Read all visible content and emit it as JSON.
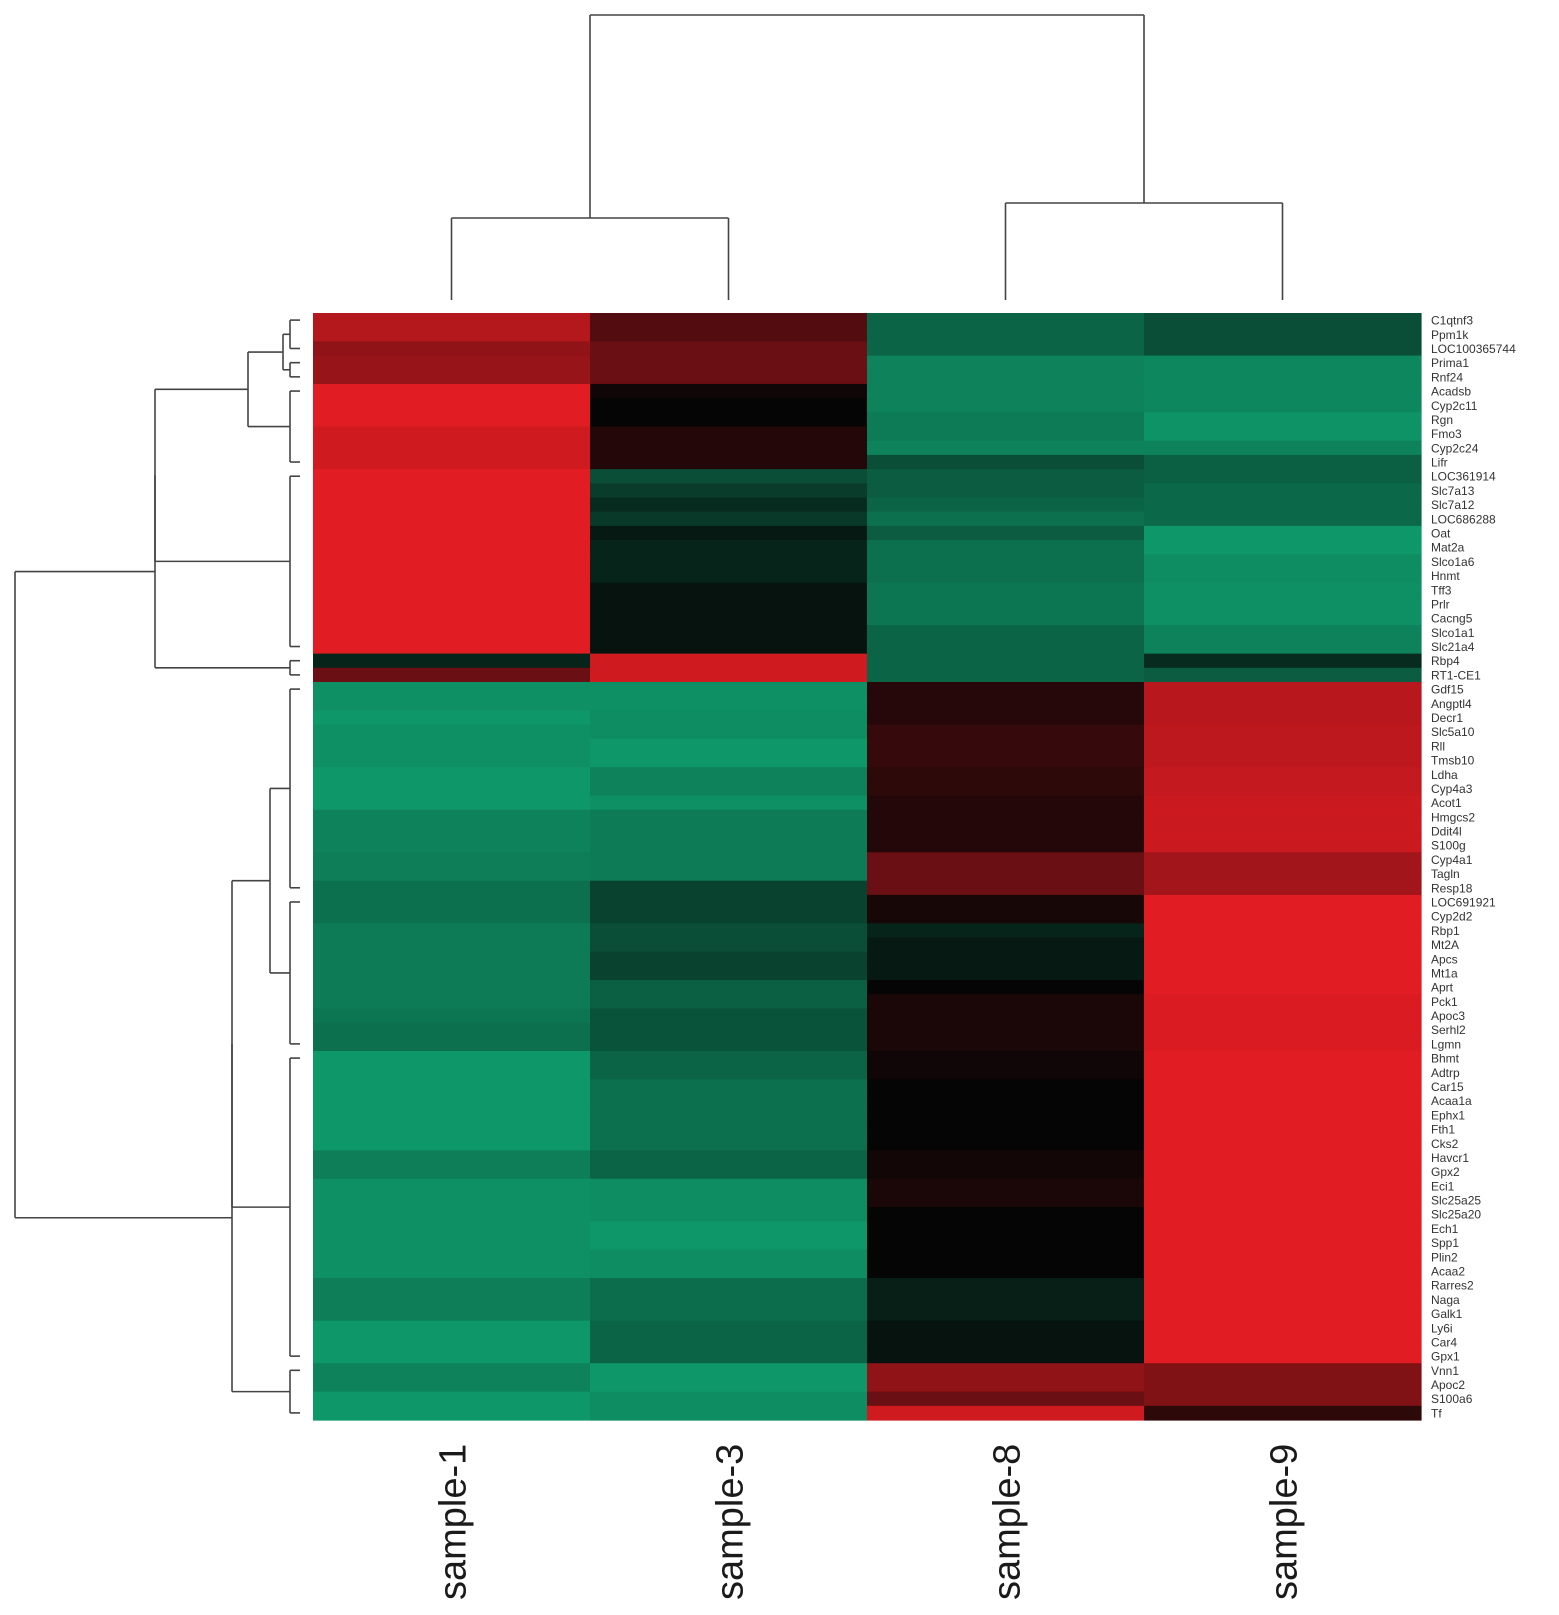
{
  "chart_data": {
    "type": "heatmap",
    "samples": [
      "sample-1",
      "sample-3",
      "sample-8",
      "sample-9"
    ],
    "genes": [
      "C1qtnf3",
      "Ppm1k",
      "LOC100365744",
      "Prima1",
      "Rnf24",
      "Acadsb",
      "Cyp2c11",
      "Rgn",
      "Fmo3",
      "Cyp2c24",
      "Lifr",
      "LOC361914",
      "Slc7a13",
      "Slc7a12",
      "LOC686288",
      "Oat",
      "Mat2a",
      "Slco1a6",
      "Hnmt",
      "Tff3",
      "Prlr",
      "Cacng5",
      "Slco1a1",
      "Slc21a4",
      "Rbp4",
      "RT1-CE1",
      "Gdf15",
      "Angptl4",
      "Decr1",
      "Slc5a10",
      "Rll",
      "Tmsb10",
      "Ldha",
      "Cyp4a3",
      "Acot1",
      "Hmgcs2",
      "Ddit4l",
      "S100g",
      "Cyp4a1",
      "Tagln",
      "Resp18",
      "LOC691921",
      "Cyp2d2",
      "Rbp1",
      "Mt2A",
      "Apcs",
      "Mt1a",
      "Aprt",
      "Pck1",
      "Apoc3",
      "Serhl2",
      "Lgmn",
      "Bhmt",
      "Adtrp",
      "Car15",
      "Acaa1a",
      "Ephx1",
      "Fth1",
      "Cks2",
      "Havcr1",
      "Gpx2",
      "Eci1",
      "Slc25a25",
      "Slc25a20",
      "Ech1",
      "Spp1",
      "Plin2",
      "Acaa2",
      "Rarres2",
      "Naga",
      "Galk1",
      "Ly6i",
      "Car4",
      "Gpx1",
      "Vnn1",
      "Apoc2",
      "S100a6",
      "Tf"
    ],
    "values": [
      [
        0.78,
        0.35,
        -0.55,
        -0.42
      ],
      [
        0.78,
        0.35,
        -0.55,
        -0.42
      ],
      [
        0.62,
        0.45,
        -0.55,
        -0.42
      ],
      [
        0.65,
        0.45,
        -0.72,
        -0.75
      ],
      [
        0.65,
        0.45,
        -0.72,
        -0.75
      ],
      [
        0.98,
        0.05,
        -0.72,
        -0.75
      ],
      [
        0.98,
        0.0,
        -0.72,
        -0.75
      ],
      [
        0.98,
        0.0,
        -0.68,
        -0.82
      ],
      [
        0.9,
        0.14,
        -0.68,
        -0.82
      ],
      [
        0.9,
        0.14,
        -0.72,
        -0.72
      ],
      [
        0.9,
        0.14,
        -0.42,
        -0.52
      ],
      [
        0.98,
        -0.42,
        -0.5,
        -0.52
      ],
      [
        0.98,
        -0.32,
        -0.5,
        -0.58
      ],
      [
        0.98,
        -0.22,
        -0.55,
        -0.58
      ],
      [
        0.98,
        -0.3,
        -0.62,
        -0.58
      ],
      [
        0.98,
        -0.12,
        -0.5,
        -0.85
      ],
      [
        0.98,
        -0.18,
        -0.62,
        -0.85
      ],
      [
        0.98,
        -0.18,
        -0.62,
        -0.78
      ],
      [
        0.98,
        -0.18,
        -0.62,
        -0.78
      ],
      [
        0.98,
        -0.08,
        -0.65,
        -0.8
      ],
      [
        0.98,
        -0.08,
        -0.65,
        -0.8
      ],
      [
        0.98,
        -0.08,
        -0.65,
        -0.8
      ],
      [
        0.98,
        -0.08,
        -0.55,
        -0.72
      ],
      [
        0.98,
        -0.08,
        -0.55,
        -0.72
      ],
      [
        -0.18,
        0.9,
        -0.55,
        -0.22
      ],
      [
        0.45,
        0.9,
        -0.55,
        -0.5
      ],
      [
        -0.8,
        -0.8,
        0.15,
        0.8
      ],
      [
        -0.8,
        -0.8,
        0.15,
        0.8
      ],
      [
        -0.85,
        -0.78,
        0.15,
        0.8
      ],
      [
        -0.8,
        -0.78,
        0.22,
        0.82
      ],
      [
        -0.8,
        -0.85,
        0.22,
        0.82
      ],
      [
        -0.8,
        -0.85,
        0.22,
        0.82
      ],
      [
        -0.85,
        -0.72,
        0.18,
        0.85
      ],
      [
        -0.85,
        -0.72,
        0.18,
        0.85
      ],
      [
        -0.85,
        -0.8,
        0.14,
        0.88
      ],
      [
        -0.72,
        -0.68,
        0.14,
        0.88
      ],
      [
        -0.72,
        -0.68,
        0.14,
        0.88
      ],
      [
        -0.72,
        -0.68,
        0.14,
        0.88
      ],
      [
        -0.7,
        -0.68,
        0.45,
        0.7
      ],
      [
        -0.7,
        -0.68,
        0.45,
        0.7
      ],
      [
        -0.62,
        -0.35,
        0.45,
        0.7
      ],
      [
        -0.62,
        -0.35,
        0.08,
        0.98
      ],
      [
        -0.62,
        -0.35,
        0.08,
        0.98
      ],
      [
        -0.68,
        -0.42,
        -0.18,
        0.98
      ],
      [
        -0.68,
        -0.42,
        -0.12,
        0.98
      ],
      [
        -0.68,
        -0.35,
        -0.12,
        0.98
      ],
      [
        -0.68,
        -0.35,
        -0.12,
        0.98
      ],
      [
        -0.68,
        -0.52,
        0.0,
        0.98
      ],
      [
        -0.68,
        -0.52,
        0.1,
        0.95
      ],
      [
        -0.65,
        -0.45,
        0.1,
        0.95
      ],
      [
        -0.62,
        -0.45,
        0.1,
        0.95
      ],
      [
        -0.62,
        -0.45,
        0.1,
        0.95
      ],
      [
        -0.85,
        -0.55,
        0.05,
        0.98
      ],
      [
        -0.85,
        -0.55,
        0.05,
        0.98
      ],
      [
        -0.85,
        -0.62,
        0.0,
        0.98
      ],
      [
        -0.85,
        -0.62,
        0.0,
        0.98
      ],
      [
        -0.85,
        -0.62,
        0.0,
        0.98
      ],
      [
        -0.85,
        -0.62,
        0.0,
        0.98
      ],
      [
        -0.85,
        -0.62,
        0.0,
        0.98
      ],
      [
        -0.7,
        -0.55,
        0.06,
        0.98
      ],
      [
        -0.7,
        -0.55,
        0.06,
        0.98
      ],
      [
        -0.8,
        -0.78,
        0.1,
        0.98
      ],
      [
        -0.8,
        -0.78,
        0.1,
        0.98
      ],
      [
        -0.8,
        -0.78,
        0.0,
        0.98
      ],
      [
        -0.8,
        -0.85,
        0.0,
        0.98
      ],
      [
        -0.8,
        -0.85,
        0.0,
        0.98
      ],
      [
        -0.8,
        -0.78,
        0.0,
        0.98
      ],
      [
        -0.8,
        -0.78,
        0.0,
        0.98
      ],
      [
        -0.7,
        -0.6,
        -0.15,
        0.98
      ],
      [
        -0.7,
        -0.6,
        -0.15,
        0.98
      ],
      [
        -0.7,
        -0.6,
        -0.15,
        0.98
      ],
      [
        -0.85,
        -0.55,
        -0.08,
        0.98
      ],
      [
        -0.85,
        -0.55,
        -0.08,
        0.98
      ],
      [
        -0.85,
        -0.55,
        -0.08,
        0.98
      ],
      [
        -0.72,
        -0.85,
        0.62,
        0.55
      ],
      [
        -0.72,
        -0.85,
        0.62,
        0.55
      ],
      [
        -0.85,
        -0.78,
        0.45,
        0.55
      ],
      [
        -0.85,
        -0.78,
        0.9,
        0.18
      ]
    ],
    "row_group_sizes": [
      3,
      2,
      6,
      13,
      2,
      15,
      11,
      22,
      4
    ],
    "color_scale": {
      "low": "#10b27c",
      "mid": "#050505",
      "high": "#e51c23"
    }
  }
}
